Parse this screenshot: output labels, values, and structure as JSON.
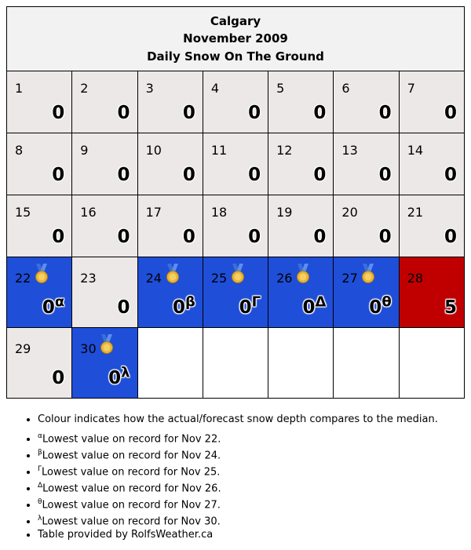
{
  "header": {
    "city": "Calgary",
    "month": "November 2009",
    "subtitle": "Daily Snow On The Ground"
  },
  "colors": {
    "normal_cell": "#ede8e8",
    "record_low_cell": "#1f4ed8",
    "above_median_cell": "#c00000",
    "header_bg": "#f2f2f2"
  },
  "weeks": [
    [
      {
        "day": "1",
        "value": "0",
        "status": "norm"
      },
      {
        "day": "2",
        "value": "0",
        "status": "norm"
      },
      {
        "day": "3",
        "value": "0",
        "status": "norm"
      },
      {
        "day": "4",
        "value": "0",
        "status": "norm"
      },
      {
        "day": "5",
        "value": "0",
        "status": "norm"
      },
      {
        "day": "6",
        "value": "0",
        "status": "norm"
      },
      {
        "day": "7",
        "value": "0",
        "status": "norm"
      }
    ],
    [
      {
        "day": "8",
        "value": "0",
        "status": "norm"
      },
      {
        "day": "9",
        "value": "0",
        "status": "norm"
      },
      {
        "day": "10",
        "value": "0",
        "status": "norm"
      },
      {
        "day": "11",
        "value": "0",
        "status": "norm"
      },
      {
        "day": "12",
        "value": "0",
        "status": "norm"
      },
      {
        "day": "13",
        "value": "0",
        "status": "norm"
      },
      {
        "day": "14",
        "value": "0",
        "status": "norm"
      }
    ],
    [
      {
        "day": "15",
        "value": "0",
        "status": "norm"
      },
      {
        "day": "16",
        "value": "0",
        "status": "norm"
      },
      {
        "day": "17",
        "value": "0",
        "status": "norm"
      },
      {
        "day": "18",
        "value": "0",
        "status": "norm"
      },
      {
        "day": "19",
        "value": "0",
        "status": "norm"
      },
      {
        "day": "20",
        "value": "0",
        "status": "norm"
      },
      {
        "day": "21",
        "value": "0",
        "status": "norm"
      }
    ],
    [
      {
        "day": "22",
        "value": "0",
        "note": "α",
        "status": "low",
        "medal": "medal-icon"
      },
      {
        "day": "23",
        "value": "0",
        "status": "norm"
      },
      {
        "day": "24",
        "value": "0",
        "note": "β",
        "status": "low",
        "medal": "medal-icon"
      },
      {
        "day": "25",
        "value": "0",
        "note": "Γ",
        "status": "low",
        "medal": "medal-icon"
      },
      {
        "day": "26",
        "value": "0",
        "note": "Δ",
        "status": "low",
        "medal": "medal-icon"
      },
      {
        "day": "27",
        "value": "0",
        "note": "θ",
        "status": "low",
        "medal": "medal-icon"
      },
      {
        "day": "28",
        "value": "5",
        "status": "high"
      }
    ],
    [
      {
        "day": "29",
        "value": "0",
        "status": "norm"
      },
      {
        "day": "30",
        "value": "0",
        "note": "λ",
        "status": "low",
        "medal": "medal-icon"
      },
      {
        "status": "empty"
      },
      {
        "status": "empty"
      },
      {
        "status": "empty"
      },
      {
        "status": "empty"
      },
      {
        "status": "empty"
      }
    ]
  ],
  "notes": [
    {
      "sym": "",
      "text": "Colour indicates how the actual/forecast snow depth compares to the median."
    },
    {
      "sym": "α",
      "text": "Lowest value on record for Nov 22."
    },
    {
      "sym": "β",
      "text": "Lowest value on record for Nov 24."
    },
    {
      "sym": "Γ",
      "text": "Lowest value on record for Nov 25."
    },
    {
      "sym": "Δ",
      "text": "Lowest value on record for Nov 26."
    },
    {
      "sym": "θ",
      "text": "Lowest value on record for Nov 27."
    },
    {
      "sym": "λ",
      "text": "Lowest value on record for Nov 30."
    },
    {
      "sym": "",
      "text": "Table provided by RolfsWeather.ca"
    }
  ]
}
